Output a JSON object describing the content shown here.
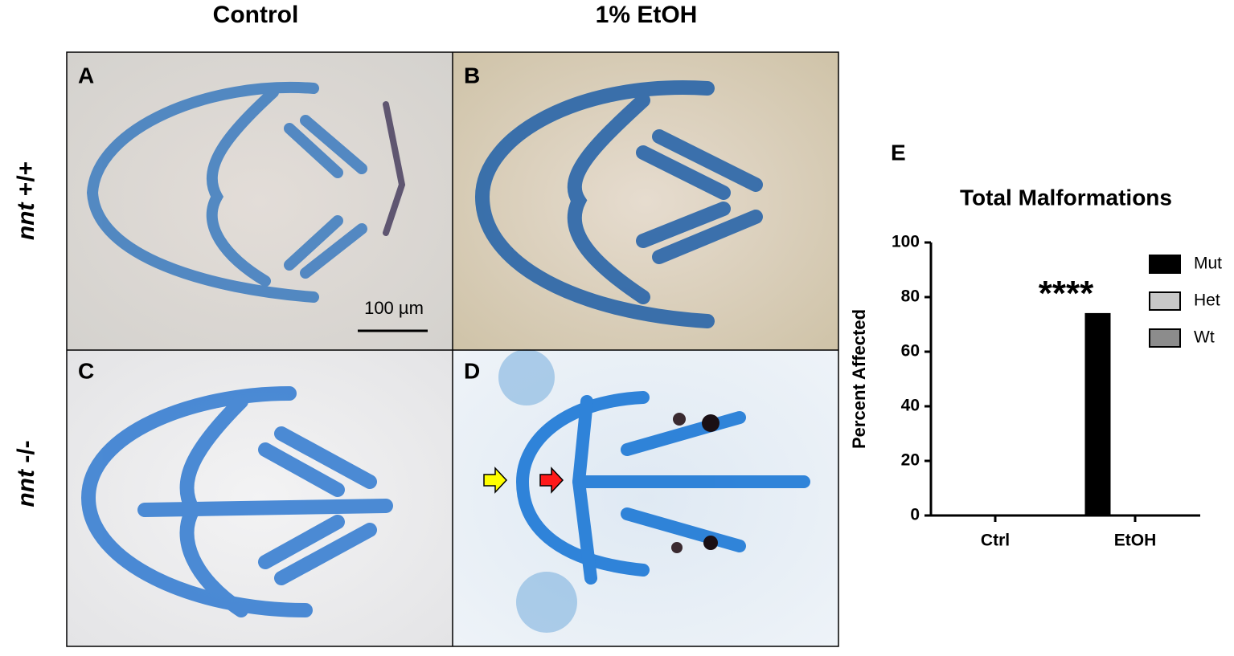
{
  "figure": {
    "column_labels": [
      "Control",
      "1% EtOH"
    ],
    "row_labels": [
      {
        "gene": "nnt",
        "genotype": "+/+"
      },
      {
        "gene": "nnt",
        "genotype": "-/-"
      }
    ],
    "panels": [
      "A",
      "B",
      "C",
      "D"
    ],
    "scale_bar": "100 µm"
  },
  "chart_data": {
    "type": "bar",
    "panel": "E",
    "title": "Total Malformations",
    "y_label": "Percent Affected",
    "categories": [
      "Ctrl",
      "EtOH"
    ],
    "series": [
      {
        "name": "Mut",
        "color": "#000000",
        "values": [
          0,
          74
        ]
      },
      {
        "name": "Het",
        "color": "#c8c8c8",
        "values": [
          0,
          0
        ]
      },
      {
        "name": "Wt",
        "color": "#8c8c8c",
        "values": [
          0,
          0
        ]
      }
    ],
    "annotation": "****",
    "ylim": [
      0,
      100
    ],
    "yticks": [
      0,
      20,
      40,
      60,
      80,
      100
    ],
    "grid": false,
    "legend": "upper right"
  }
}
